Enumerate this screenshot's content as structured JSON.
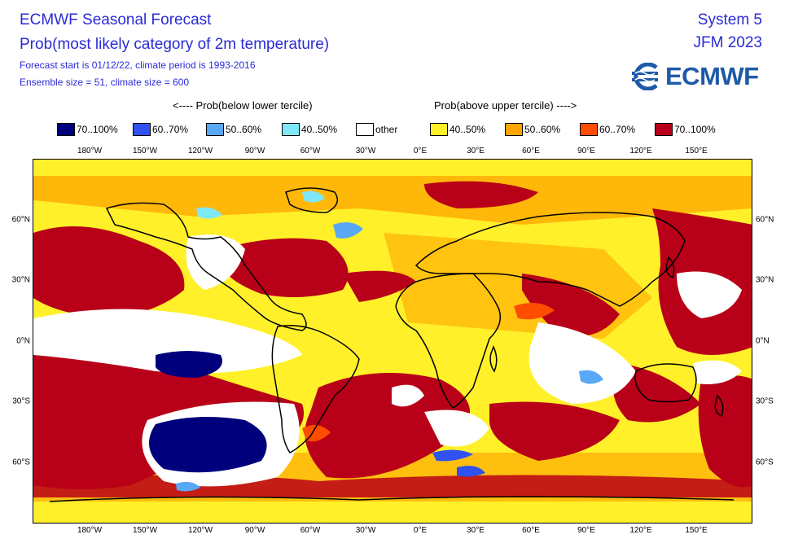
{
  "header": {
    "title": "ECMWF Seasonal Forecast",
    "subtitle": "Prob(most likely category of 2m temperature)",
    "forecast_info": "Forecast start is 01/12/22, climate period is 1993-2016",
    "ensemble_info": "Ensemble size = 51, climate size = 600",
    "system": "System 5",
    "period": "JFM 2023",
    "brand": "ECMWF"
  },
  "legend": {
    "below_heading": "<---- Prob(below lower tercile)",
    "above_heading": "Prob(above upper tercile) ---->",
    "items": [
      {
        "label": "70..100%",
        "color": "#00007c"
      },
      {
        "label": "60..70%",
        "color": "#2f52f0"
      },
      {
        "label": "50..60%",
        "color": "#58a8f6"
      },
      {
        "label": "40..50%",
        "color": "#7fe8f6"
      },
      {
        "label": "other",
        "color": "#ffffff"
      },
      {
        "label": "40..50%",
        "color": "#fff02a"
      },
      {
        "label": "50..60%",
        "color": "#ffa500"
      },
      {
        "label": "60..70%",
        "color": "#ff4d00"
      },
      {
        "label": "70..100%",
        "color": "#b80018"
      }
    ]
  },
  "axes": {
    "lon_labels": [
      "180°W",
      "150°W",
      "120°W",
      "90°W",
      "60°W",
      "30°W",
      "0°E",
      "30°E",
      "60°E",
      "90°E",
      "120°E",
      "150°E"
    ],
    "lat_labels": [
      "60°N",
      "30°N",
      "0°N",
      "30°S",
      "60°S"
    ]
  }
}
